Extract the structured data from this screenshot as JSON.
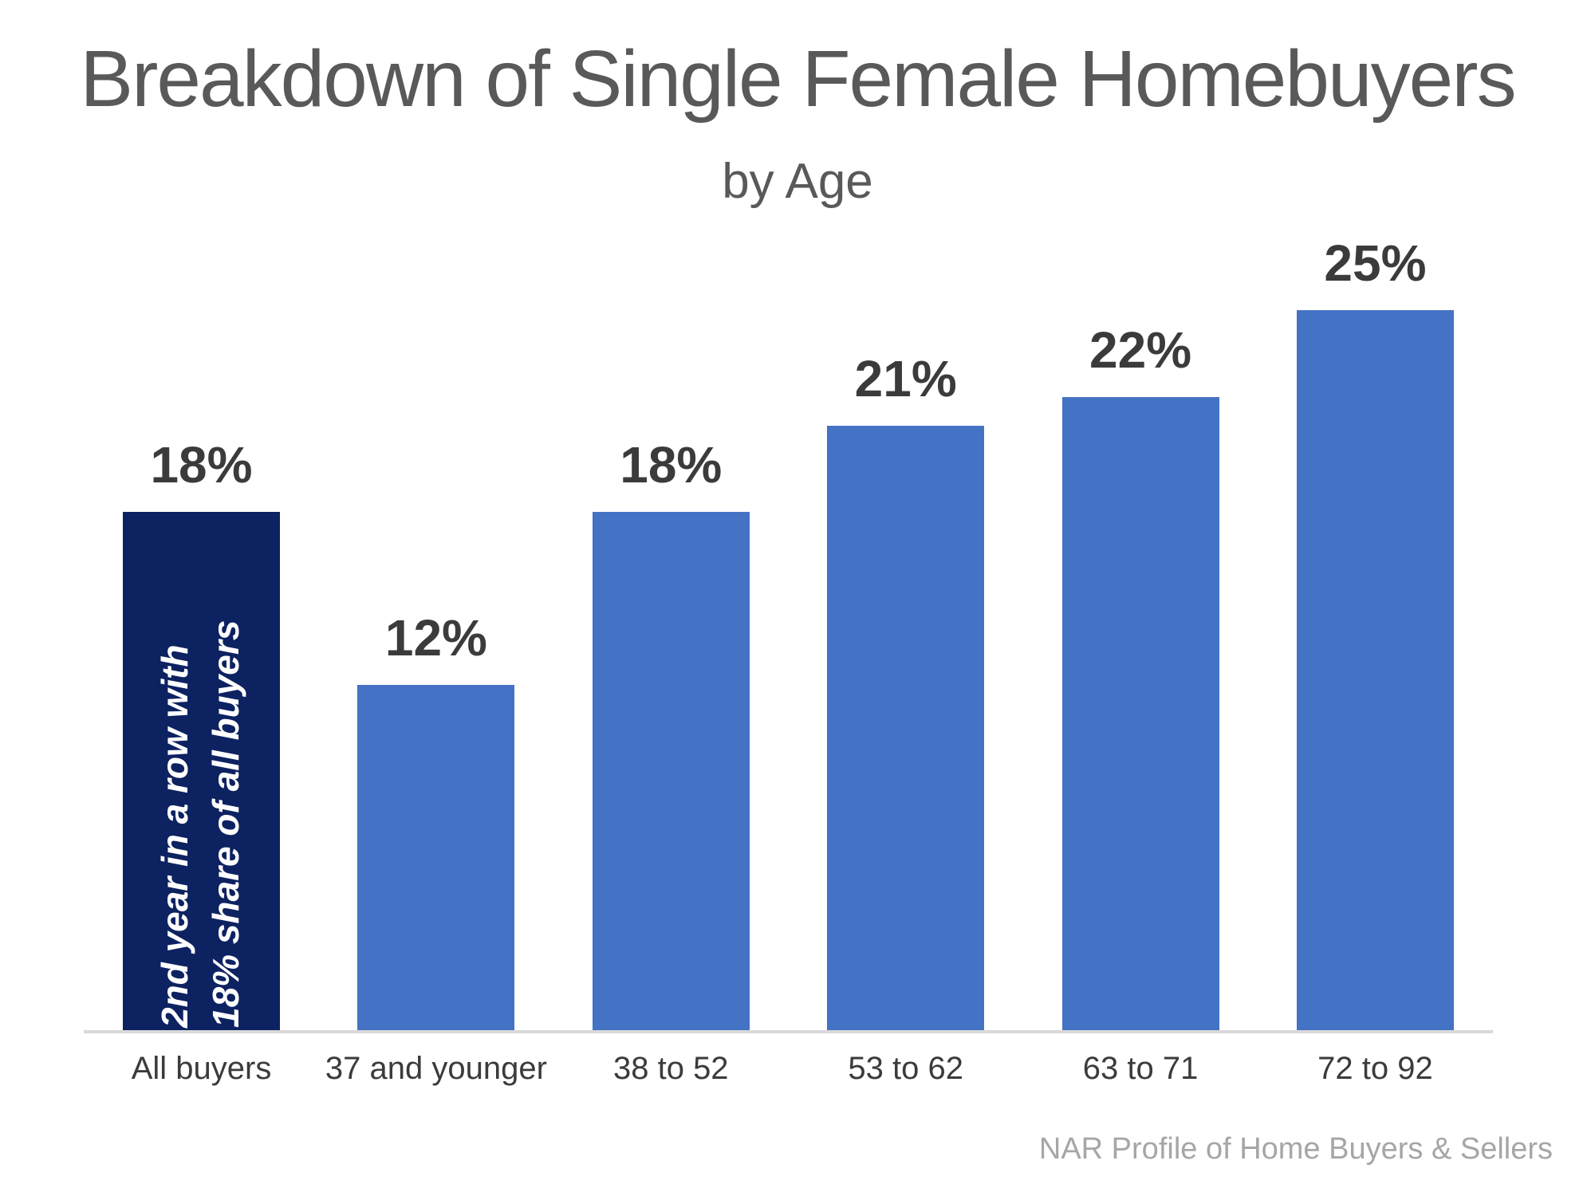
{
  "title": "Breakdown of Single Female Homebuyers",
  "subtitle": "by Age",
  "source": "NAR Profile of Home Buyers & Sellers",
  "colors": {
    "bar": "#4472c4",
    "highlight_bar": "#0d2261",
    "value_label": "#3b3b3b",
    "title": "#595959",
    "axis_line": "#d9d9d9",
    "source_text": "#a6a6a6",
    "annotation_text": "#ffffff"
  },
  "chart_data": {
    "type": "bar",
    "title": "Breakdown of Single Female Homebuyers",
    "subtitle": "by Age",
    "categories": [
      "All buyers",
      "37 and younger",
      "38 to 52",
      "53 to 62",
      "63 to 71",
      "72 to 92"
    ],
    "values": [
      18,
      12,
      18,
      21,
      22,
      25
    ],
    "value_labels": [
      "18%",
      "12%",
      "18%",
      "21%",
      "22%",
      "25%"
    ],
    "xlabel": "",
    "ylabel": "",
    "ylim": [
      0,
      27
    ],
    "grid": false,
    "legend": false,
    "y_axis_visible": false,
    "highlight_index": 0,
    "annotation": {
      "bar_index": 0,
      "lines": [
        "2nd year in a row with",
        "18% share of all buyers"
      ]
    },
    "source": "NAR Profile of Home Buyers & Sellers"
  }
}
